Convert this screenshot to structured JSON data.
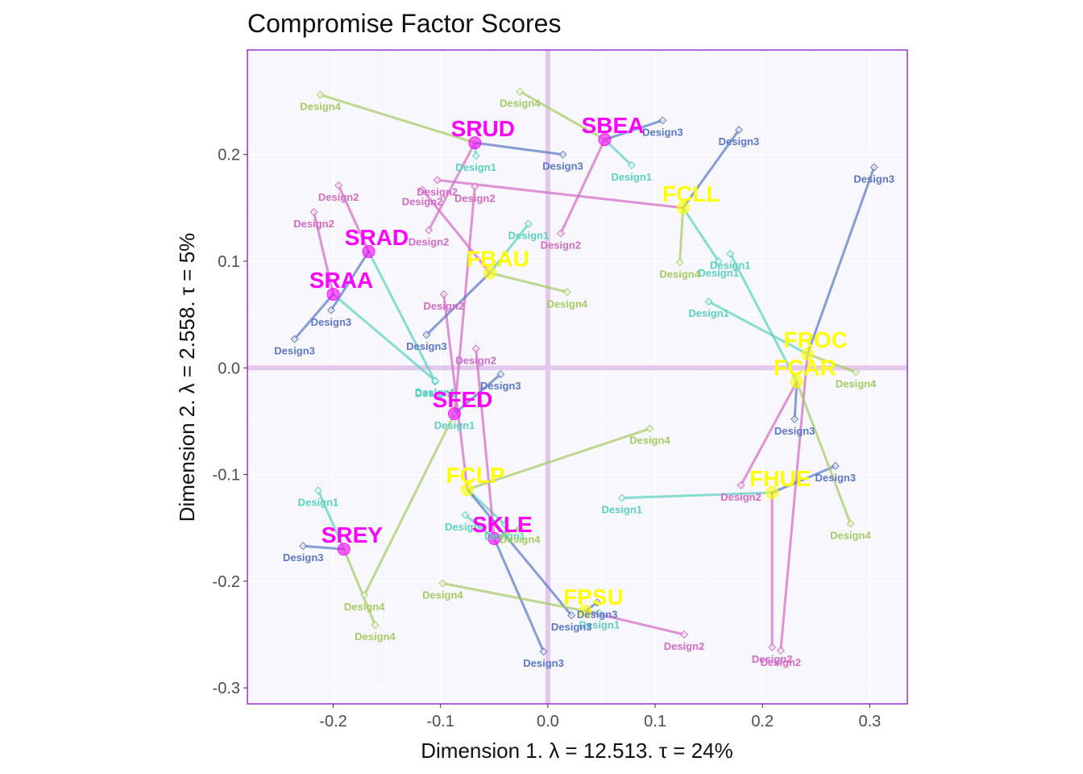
{
  "chart_data": {
    "type": "scatter",
    "title": "Compromise Factor Scores",
    "xlabel": "Dimension 1.   λ = 12.513.  τ = 24%",
    "ylabel": "Dimension 2.   λ = 2.558.  τ = 5%",
    "xlim": [
      -0.28,
      0.335
    ],
    "ylim": [
      -0.315,
      0.298
    ],
    "xticks": [
      -0.2,
      -0.1,
      0.0,
      0.1,
      0.2,
      0.3
    ],
    "xtick_labels": [
      "-0.2",
      "-0.1",
      "0.0",
      "0.1",
      "0.2",
      "0.3"
    ],
    "yticks": [
      -0.3,
      -0.2,
      -0.1,
      0.0,
      0.1,
      0.2
    ],
    "ytick_labels": [
      "-0.3",
      "-0.2",
      "-0.1",
      "0.0",
      "0.1",
      "0.2"
    ],
    "grid": true,
    "colors": {
      "panel_bg": "#f8f7fd",
      "panel_border": "#9b30d0",
      "origin_lines": "#e3c8ee",
      "centroid_S": "#ff00ff",
      "centroid_F": "#ffff00",
      "Design1": "#5bd1c0",
      "Design2": "#d46bc6",
      "Design3": "#5a78c7",
      "Design4": "#a5cc63"
    },
    "series": [
      {
        "name": "Design1",
        "points": [
          {
            "obj": "SRUD",
            "x": -0.067,
            "y": 0.199,
            "label": "Design1"
          },
          {
            "obj": "SBEA",
            "x": 0.078,
            "y": 0.19,
            "label": "Design1"
          },
          {
            "obj": "SRAD",
            "x": -0.105,
            "y": -0.013,
            "label": "Design1"
          },
          {
            "obj": "SRAA",
            "x": -0.105,
            "y": -0.012,
            "label": "Design1"
          },
          {
            "obj": "FBAU",
            "x": -0.018,
            "y": 0.135,
            "label": "Design1"
          },
          {
            "obj": "SFED",
            "x": -0.087,
            "y": -0.043,
            "label": "Design1"
          },
          {
            "obj": "FCLL",
            "x": 0.159,
            "y": 0.1,
            "label": "Design1"
          },
          {
            "obj": "FROC",
            "x": 0.15,
            "y": 0.062,
            "label": "Design1"
          },
          {
            "obj": "FCAR",
            "x": 0.17,
            "y": 0.107,
            "label": "Design1"
          },
          {
            "obj": "FHUE",
            "x": 0.069,
            "y": -0.122,
            "label": "Design1"
          },
          {
            "obj": "SREY",
            "x": -0.214,
            "y": -0.115,
            "label": "Design1"
          },
          {
            "obj": "SKLE",
            "x": -0.077,
            "y": -0.138,
            "label": "Design1"
          },
          {
            "obj": "FCLP",
            "x": -0.04,
            "y": -0.147,
            "label": "Design1"
          },
          {
            "obj": "FPSU",
            "x": 0.048,
            "y": -0.23,
            "label": "Design1"
          }
        ]
      },
      {
        "name": "Design2",
        "points": [
          {
            "obj": "SRUD",
            "x": -0.111,
            "y": 0.129,
            "label": "Design2"
          },
          {
            "obj": "SBEA",
            "x": 0.012,
            "y": 0.126,
            "label": "Design2"
          },
          {
            "obj": "SRAD",
            "x": -0.195,
            "y": 0.171,
            "label": "Design2"
          },
          {
            "obj": "SRAA",
            "x": -0.218,
            "y": 0.146,
            "label": "Design2"
          },
          {
            "obj": "FBAU",
            "x": -0.117,
            "y": 0.167,
            "label": "Design2"
          },
          {
            "obj": "FCLL",
            "x": -0.103,
            "y": 0.176,
            "label": "Design2"
          },
          {
            "obj": "SFED",
            "x": -0.068,
            "y": 0.17,
            "label": "Design2"
          },
          {
            "obj": "SKLE",
            "x": -0.067,
            "y": 0.018,
            "label": "Design2"
          },
          {
            "obj": "FCLP",
            "x": -0.097,
            "y": 0.069,
            "label": "Design2"
          },
          {
            "obj": "FCAR",
            "x": 0.18,
            "y": -0.11,
            "label": "Design2"
          },
          {
            "obj": "FPSU",
            "x": 0.127,
            "y": -0.25,
            "label": "Design2"
          },
          {
            "obj": "FHUE",
            "x": 0.209,
            "y": -0.262,
            "label": "Design2"
          },
          {
            "obj": "FROC",
            "x": 0.217,
            "y": -0.265,
            "label": "Design2"
          }
        ]
      },
      {
        "name": "Design3",
        "points": [
          {
            "obj": "SRUD",
            "x": 0.014,
            "y": 0.2,
            "label": "Design3"
          },
          {
            "obj": "SBEA",
            "x": 0.107,
            "y": 0.232,
            "label": "Design3"
          },
          {
            "obj": "FCLL",
            "x": 0.178,
            "y": 0.223,
            "label": "Design3"
          },
          {
            "obj": "FROC",
            "x": 0.304,
            "y": 0.188,
            "label": "Design3"
          },
          {
            "obj": "SRAD",
            "x": -0.202,
            "y": 0.054,
            "label": "Design3"
          },
          {
            "obj": "SRAA",
            "x": -0.236,
            "y": 0.027,
            "label": "Design3"
          },
          {
            "obj": "FBAU",
            "x": -0.113,
            "y": 0.031,
            "label": "Design3"
          },
          {
            "obj": "SFED",
            "x": -0.044,
            "y": -0.006,
            "label": "Design3"
          },
          {
            "obj": "FCAR",
            "x": 0.23,
            "y": -0.048,
            "label": "Design3"
          },
          {
            "obj": "FHUE",
            "x": 0.268,
            "y": -0.092,
            "label": "Design3"
          },
          {
            "obj": "SREY",
            "x": -0.228,
            "y": -0.167,
            "label": "Design3"
          },
          {
            "obj": "FCLP",
            "x": 0.022,
            "y": -0.232,
            "label": "Design3"
          },
          {
            "obj": "FPSU",
            "x": 0.046,
            "y": -0.22,
            "label": "Design3"
          },
          {
            "obj": "SKLE",
            "x": -0.004,
            "y": -0.266,
            "label": "Design3"
          }
        ]
      },
      {
        "name": "Design4",
        "points": [
          {
            "obj": "SRUD",
            "x": -0.212,
            "y": 0.256,
            "label": "Design4"
          },
          {
            "obj": "SBEA",
            "x": -0.026,
            "y": 0.259,
            "label": "Design4"
          },
          {
            "obj": "FBAU",
            "x": 0.018,
            "y": 0.071,
            "label": "Design4"
          },
          {
            "obj": "FCLL",
            "x": 0.123,
            "y": 0.099,
            "label": "Design4"
          },
          {
            "obj": "FROC",
            "x": 0.287,
            "y": -0.004,
            "label": "Design4"
          },
          {
            "obj": "FCAR",
            "x": 0.282,
            "y": -0.146,
            "label": "Design4"
          },
          {
            "obj": "FCLP",
            "x": 0.095,
            "y": -0.057,
            "label": "Design4"
          },
          {
            "obj": "SFED",
            "x": -0.171,
            "y": -0.213,
            "label": "Design4"
          },
          {
            "obj": "SKLE",
            "x": -0.026,
            "y": -0.15,
            "label": "Design4"
          },
          {
            "obj": "FPSU",
            "x": -0.098,
            "y": -0.202,
            "label": "Design4"
          },
          {
            "obj": "SREY",
            "x": -0.161,
            "y": -0.241,
            "label": "Design4"
          }
        ]
      }
    ],
    "centroids": [
      {
        "name": "SRUD",
        "x": -0.068,
        "y": 0.211,
        "group": "S"
      },
      {
        "name": "SBEA",
        "x": 0.053,
        "y": 0.214,
        "group": "S"
      },
      {
        "name": "SRAD",
        "x": -0.167,
        "y": 0.109,
        "group": "S"
      },
      {
        "name": "SRAA",
        "x": -0.2,
        "y": 0.069,
        "group": "S"
      },
      {
        "name": "SFED",
        "x": -0.087,
        "y": -0.043,
        "group": "S"
      },
      {
        "name": "SREY",
        "x": -0.19,
        "y": -0.17,
        "group": "S"
      },
      {
        "name": "SKLE",
        "x": -0.05,
        "y": -0.16,
        "group": "S"
      },
      {
        "name": "FBAU",
        "x": -0.054,
        "y": 0.089,
        "group": "F"
      },
      {
        "name": "FCLL",
        "x": 0.126,
        "y": 0.15,
        "group": "F"
      },
      {
        "name": "FROC",
        "x": 0.242,
        "y": 0.013,
        "group": "F"
      },
      {
        "name": "FCAR",
        "x": 0.232,
        "y": -0.013,
        "group": "F"
      },
      {
        "name": "FHUE",
        "x": 0.209,
        "y": -0.117,
        "group": "F"
      },
      {
        "name": "FCLP",
        "x": -0.075,
        "y": -0.114,
        "group": "F"
      },
      {
        "name": "FPSU",
        "x": 0.035,
        "y": -0.228,
        "group": "F"
      }
    ]
  }
}
